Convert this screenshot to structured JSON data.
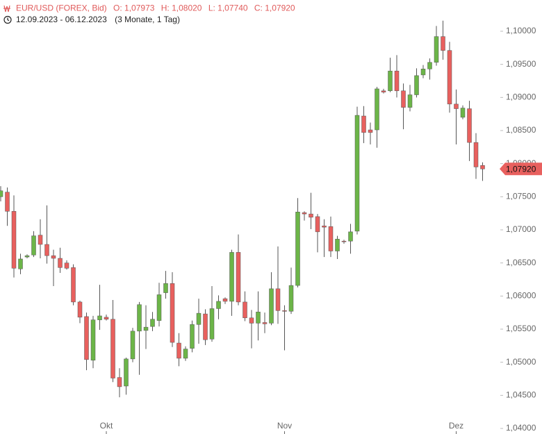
{
  "chart_data": {
    "type": "candlestick",
    "title": "EUR/USD (FOREX, Bid)",
    "ohlc_labels": [
      "O: 1,07973",
      "H: 1,08020",
      "L: 1,07740",
      "C: 1,07920"
    ],
    "subtitle": "12.09.2023 - 06.12.2023",
    "period": "(3 Monate, 1 Tag)",
    "categories": [
      null,
      null,
      null,
      null,
      null,
      null,
      null,
      null,
      null,
      null,
      null,
      null,
      null,
      null,
      null,
      null,
      "Okt",
      null,
      null,
      null,
      null,
      null,
      null,
      null,
      null,
      null,
      null,
      null,
      null,
      null,
      null,
      null,
      null,
      null,
      null,
      null,
      null,
      null,
      null,
      null,
      null,
      null,
      null,
      "Nov",
      null,
      null,
      null,
      null,
      null,
      null,
      null,
      null,
      null,
      null,
      null,
      null,
      null,
      null,
      null,
      null,
      null,
      null,
      null,
      null,
      null,
      null,
      null,
      null,
      null,
      "Dez",
      null,
      null,
      null,
      null
    ],
    "open": [
      1.075,
      1.0757,
      1.0728,
      1.0641,
      1.0659,
      1.0662,
      1.0692,
      1.0678,
      1.0661,
      1.0657,
      1.065,
      1.0643,
      1.0591,
      1.0569,
      1.0503,
      1.0564,
      1.0568,
      1.0565,
      1.0477,
      1.0464,
      1.0505,
      1.0547,
      1.0548,
      1.0554,
      1.0563,
      1.0605,
      1.0619,
      1.0529,
      1.0506,
      1.0521,
      1.0557,
      1.0573,
      1.0535,
      1.0581,
      1.0596,
      1.0592,
      1.0666,
      1.0591,
      1.0567,
      1.0559,
      1.056,
      1.0559,
      1.0611,
      1.0578,
      1.0577,
      1.0616,
      1.0726,
      1.0724,
      1.072,
      1.0706,
      1.0705,
      1.0668,
      1.0683,
      1.0683,
      1.0698,
      1.0872,
      1.0851,
      1.0851,
      1.091,
      1.091,
      1.094,
      1.091,
      1.0885,
      1.0904,
      1.0934,
      1.0943,
      1.0953,
      1.0992,
      1.0971,
      1.089,
      1.087,
      1.0883,
      1.0832,
      1.07973
    ],
    "high": [
      1.0766,
      1.0764,
      1.0752,
      1.0664,
      1.0663,
      1.0698,
      1.0716,
      1.0737,
      1.067,
      1.0673,
      1.0654,
      1.0648,
      1.0593,
      1.0575,
      1.057,
      1.0617,
      1.0572,
      1.0594,
      1.0491,
      1.0507,
      1.0552,
      1.0591,
      1.0586,
      1.0576,
      1.062,
      1.0638,
      1.0636,
      1.0544,
      1.0524,
      1.0563,
      1.0596,
      1.058,
      1.0615,
      1.0601,
      1.0598,
      1.067,
      1.0693,
      1.0607,
      1.0579,
      1.0607,
      1.0575,
      1.0636,
      1.0675,
      1.0586,
      1.0643,
      1.0748,
      1.0728,
      1.0756,
      1.0724,
      1.0716,
      1.072,
      1.0691,
      1.0685,
      1.0709,
      1.0886,
      1.0887,
      1.0862,
      1.0916,
      1.0913,
      1.096,
      1.0964,
      1.0921,
      1.0919,
      1.0944,
      1.0949,
      1.0959,
      1.1008,
      1.1016,
      1.0984,
      1.0912,
      1.0888,
      1.0895,
      1.0846,
      1.0802
    ],
    "low": [
      1.0743,
      1.0706,
      1.0628,
      1.0633,
      1.0657,
      1.0659,
      1.0657,
      1.0649,
      1.0615,
      1.0635,
      1.064,
      1.0586,
      1.0559,
      1.0488,
      1.0491,
      1.0549,
      1.0563,
      1.047,
      1.0447,
      1.0451,
      1.05,
      1.0481,
      1.052,
      1.0547,
      1.0554,
      1.0596,
      1.0523,
      1.0494,
      1.0502,
      1.0515,
      1.0528,
      1.0526,
      1.0531,
      1.0565,
      1.0588,
      1.057,
      1.0586,
      1.0562,
      1.0521,
      1.0533,
      1.0544,
      1.0556,
      1.0558,
      1.0518,
      1.0573,
      1.0613,
      1.0714,
      1.0701,
      1.0666,
      1.0659,
      1.0659,
      1.0656,
      1.0679,
      1.0664,
      1.0693,
      1.0831,
      1.0829,
      1.0824,
      1.0906,
      1.0908,
      1.09,
      1.0852,
      1.0879,
      1.09,
      1.0929,
      1.0927,
      1.0948,
      1.0957,
      1.0877,
      1.0829,
      1.0867,
      1.0804,
      1.0777,
      1.0774
    ],
    "close": [
      1.0759,
      1.0728,
      1.0642,
      1.0656,
      1.0661,
      1.0691,
      1.0678,
      1.0661,
      1.0657,
      1.0643,
      1.0642,
      1.0591,
      1.0568,
      1.0504,
      1.0564,
      1.057,
      1.0565,
      1.0476,
      1.0463,
      1.0505,
      1.0547,
      1.0587,
      1.0553,
      1.0565,
      1.0602,
      1.0619,
      1.053,
      1.0506,
      1.052,
      1.0557,
      1.0574,
      1.0534,
      1.0581,
      1.0592,
      1.0592,
      1.0666,
      1.0591,
      1.0567,
      1.0559,
      1.0576,
      1.0558,
      1.0611,
      1.0578,
      1.0577,
      1.0616,
      1.0727,
      1.0724,
      1.0719,
      1.0697,
      1.0704,
      1.0668,
      1.0686,
      1.0682,
      1.0697,
      1.0873,
      1.0847,
      1.0847,
      1.0913,
      1.0908,
      1.094,
      1.091,
      1.0885,
      1.0904,
      1.0933,
      1.0943,
      1.0953,
      1.0992,
      1.0971,
      1.089,
      1.0883,
      1.0884,
      1.0832,
      1.0795,
      1.0792
    ],
    "up_color": "#6cb548",
    "down_color": "#e8605e",
    "ylim": [
      1.03916,
      1.10472
    ],
    "yticks": [
      {
        "value": 1.04,
        "label": "1,04000"
      },
      {
        "value": 1.045,
        "label": "1,04500"
      },
      {
        "value": 1.05,
        "label": "1,05000"
      },
      {
        "value": 1.055,
        "label": "1,05500"
      },
      {
        "value": 1.06,
        "label": "1,06000"
      },
      {
        "value": 1.065,
        "label": "1,06500"
      },
      {
        "value": 1.07,
        "label": "1,07000"
      },
      {
        "value": 1.075,
        "label": "1,07500"
      },
      {
        "value": 1.08,
        "label": "1,08000"
      },
      {
        "value": 1.085,
        "label": "1,08500"
      },
      {
        "value": 1.09,
        "label": "1,09000"
      },
      {
        "value": 1.095,
        "label": "1,09500"
      },
      {
        "value": 1.1,
        "label": "1,10000"
      }
    ],
    "price_tag": {
      "value": 1.0792,
      "label": "1,07920"
    },
    "grid": false
  }
}
